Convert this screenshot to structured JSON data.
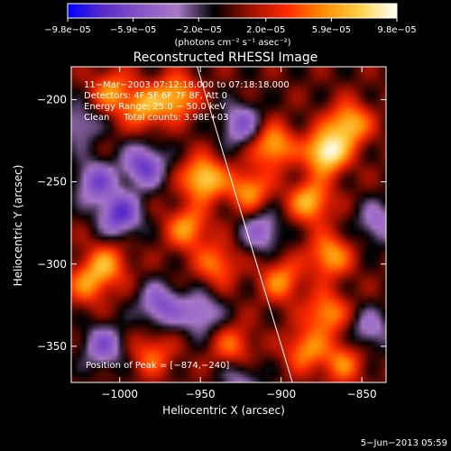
{
  "chart_data": {
    "type": "heatmap",
    "title": "Reconstructed RHESSI Image",
    "xlabel": "Heliocentric X (arcsec)",
    "ylabel": "Heliocentric Y (arcsec)",
    "xlim": [
      -1030,
      -835
    ],
    "ylim": [
      -372,
      -180
    ],
    "x_ticks": [
      -1000,
      -950,
      -900,
      -850
    ],
    "x_tick_labels": [
      "−1000",
      "−950",
      "−900",
      "−850"
    ],
    "y_ticks": [
      -200,
      -250,
      -300,
      -350
    ],
    "y_tick_labels": [
      "−200",
      "−250",
      "−300",
      "−350"
    ],
    "colorbar": {
      "min": -9.8e-05,
      "max": 9.8e-05,
      "ticks": [
        -9.8e-05,
        -5.9e-05,
        -2e-05,
        2e-05,
        5.9e-05,
        9.8e-05
      ],
      "tick_labels": [
        "−9.8e−05",
        "−5.9e−05",
        "−2.0e−05",
        "2.0e−05",
        "5.9e−05",
        "9.8e−05"
      ],
      "unit_label": "(photons cm⁻² s⁻¹ asec⁻²)",
      "colors": [
        "#0000ff",
        "#5a2dc8",
        "#8a55c8",
        "#a878c8",
        "#000000",
        "#a01000",
        "#ff2a00",
        "#ff8c00",
        "#ffd24a",
        "#ffffff"
      ]
    },
    "annotations": [
      "11−Mar−2003 07:12:18.000 to 07:18:18.000",
      "Detectors: 4F 5F 6F 7F 8F, Att 0",
      "Energy Range: 25.0 − 50.0 keV",
      "Clean     Total counts: 3.98E+03"
    ],
    "peak_label": "Position of Peak = [−874,−240]",
    "peak": {
      "x": -874,
      "y": -240
    },
    "limb_line": [
      {
        "x": -952,
        "y": -180
      },
      {
        "x": -893,
        "y": -372
      }
    ],
    "sources": [
      {
        "x": -872,
        "y": -232,
        "amp": 1.0
      },
      {
        "x": -858,
        "y": -215,
        "amp": 0.75
      },
      {
        "x": -882,
        "y": -262,
        "amp": 0.7
      },
      {
        "x": -870,
        "y": -295,
        "amp": 0.65
      },
      {
        "x": -872,
        "y": -330,
        "amp": 0.6
      },
      {
        "x": -885,
        "y": -352,
        "amp": 0.55
      },
      {
        "x": -862,
        "y": -360,
        "amp": 0.5
      },
      {
        "x": -905,
        "y": -228,
        "amp": 0.7
      },
      {
        "x": -920,
        "y": -255,
        "amp": 0.6
      },
      {
        "x": -900,
        "y": -310,
        "amp": 0.55
      },
      {
        "x": -948,
        "y": -248,
        "amp": 0.85
      },
      {
        "x": -958,
        "y": -278,
        "amp": 0.6
      },
      {
        "x": -940,
        "y": -300,
        "amp": 0.5
      },
      {
        "x": -965,
        "y": -198,
        "amp": 0.7
      },
      {
        "x": -985,
        "y": -205,
        "amp": 0.6
      },
      {
        "x": -1005,
        "y": -195,
        "amp": 0.55
      },
      {
        "x": -1008,
        "y": -300,
        "amp": 0.55
      },
      {
        "x": -1020,
        "y": -312,
        "amp": 0.5
      },
      {
        "x": -980,
        "y": -355,
        "amp": 0.45
      },
      {
        "x": -930,
        "y": -350,
        "amp": 0.45
      },
      {
        "x": -1000,
        "y": -270,
        "amp": -0.75
      },
      {
        "x": -985,
        "y": -240,
        "amp": -0.7
      },
      {
        "x": -1015,
        "y": -250,
        "amp": -0.6
      },
      {
        "x": -975,
        "y": -325,
        "amp": -0.6
      },
      {
        "x": -1010,
        "y": -350,
        "amp": -0.55
      },
      {
        "x": -950,
        "y": -330,
        "amp": -0.5
      },
      {
        "x": -925,
        "y": -215,
        "amp": -0.55
      },
      {
        "x": -912,
        "y": -280,
        "amp": -0.5
      },
      {
        "x": -840,
        "y": -275,
        "amp": -0.45
      },
      {
        "x": -845,
        "y": -340,
        "amp": -0.4
      },
      {
        "x": -1025,
        "y": -215,
        "amp": -0.4
      },
      {
        "x": -925,
        "y": -370,
        "amp": -0.35
      }
    ]
  },
  "footer": {
    "timestamp": "5−Jun−2013 05:59"
  }
}
